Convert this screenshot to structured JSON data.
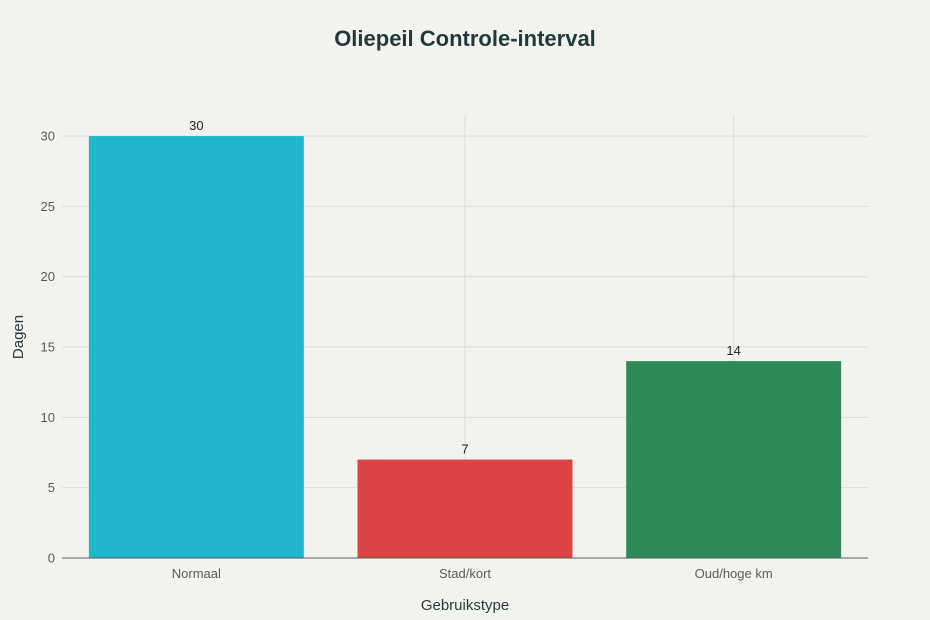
{
  "chart_data": {
    "type": "bar",
    "title": "Oliepeil Controle-interval",
    "xlabel": "Gebruikstype",
    "ylabel": "Dagen",
    "categories": [
      "Normaal",
      "Stad/kort",
      "Oud/hoge km"
    ],
    "values": [
      30,
      7,
      14
    ],
    "colors": [
      "#20b7cc",
      "#dc4444",
      "#2d8a57"
    ],
    "ylim": [
      0,
      31.5
    ],
    "yticks": [
      0,
      5,
      10,
      15,
      20,
      25,
      30
    ],
    "grid": true,
    "legend": "none"
  }
}
